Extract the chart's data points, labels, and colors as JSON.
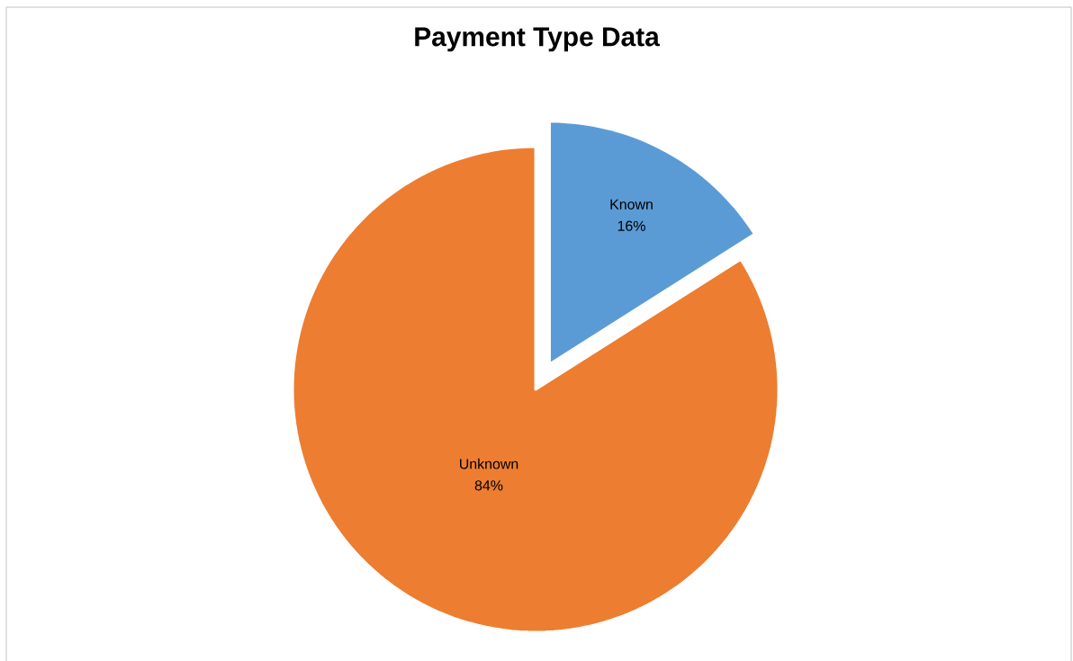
{
  "chart_data": {
    "type": "pie",
    "title": "Payment Type Data",
    "categories": [
      "Known",
      "Unknown"
    ],
    "values": [
      16,
      84
    ],
    "colors": [
      "#5b9bd5",
      "#ed7d31"
    ],
    "value_labels": [
      "16%",
      "84%"
    ]
  }
}
